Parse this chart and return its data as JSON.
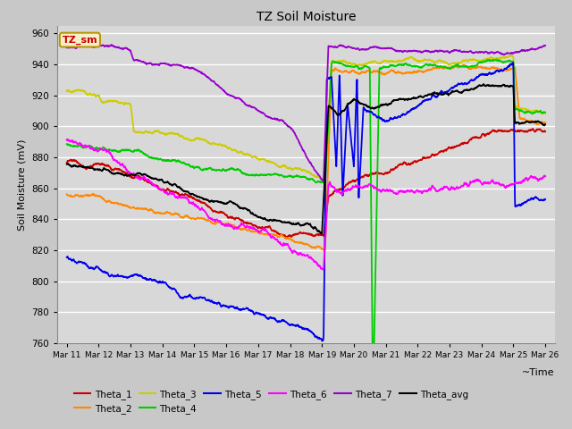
{
  "title": "TZ Soil Moisture",
  "xlabel": "~Time",
  "ylabel": "Soil Moisture (mV)",
  "ylim": [
    760,
    965
  ],
  "background_color": "#c8c8c8",
  "plot_bg_color": "#d8d8d8",
  "grid_color": "#ffffff",
  "legend_label": "TZ_sm",
  "legend_box_facecolor": "#f5f0c8",
  "legend_box_edgecolor": "#b8960a",
  "colors": {
    "Theta_1": "#cc0000",
    "Theta_2": "#ff8800",
    "Theta_3": "#cccc00",
    "Theta_4": "#00cc00",
    "Theta_5": "#0000ee",
    "Theta_6": "#ff00ff",
    "Theta_7": "#9900cc",
    "Theta_avg": "#000000"
  },
  "tick_labels": [
    "Mar 11",
    "Mar 12",
    "Mar 13",
    "Mar 14",
    "Mar 15",
    "Mar 16",
    "Mar 17",
    "Mar 18",
    "Mar 19",
    "Mar 20",
    "Mar 21",
    "Mar 22",
    "Mar 23",
    "Mar 24",
    "Mar 25",
    "Mar 26"
  ],
  "yticks": [
    760,
    780,
    800,
    820,
    840,
    860,
    880,
    900,
    920,
    940,
    960
  ]
}
